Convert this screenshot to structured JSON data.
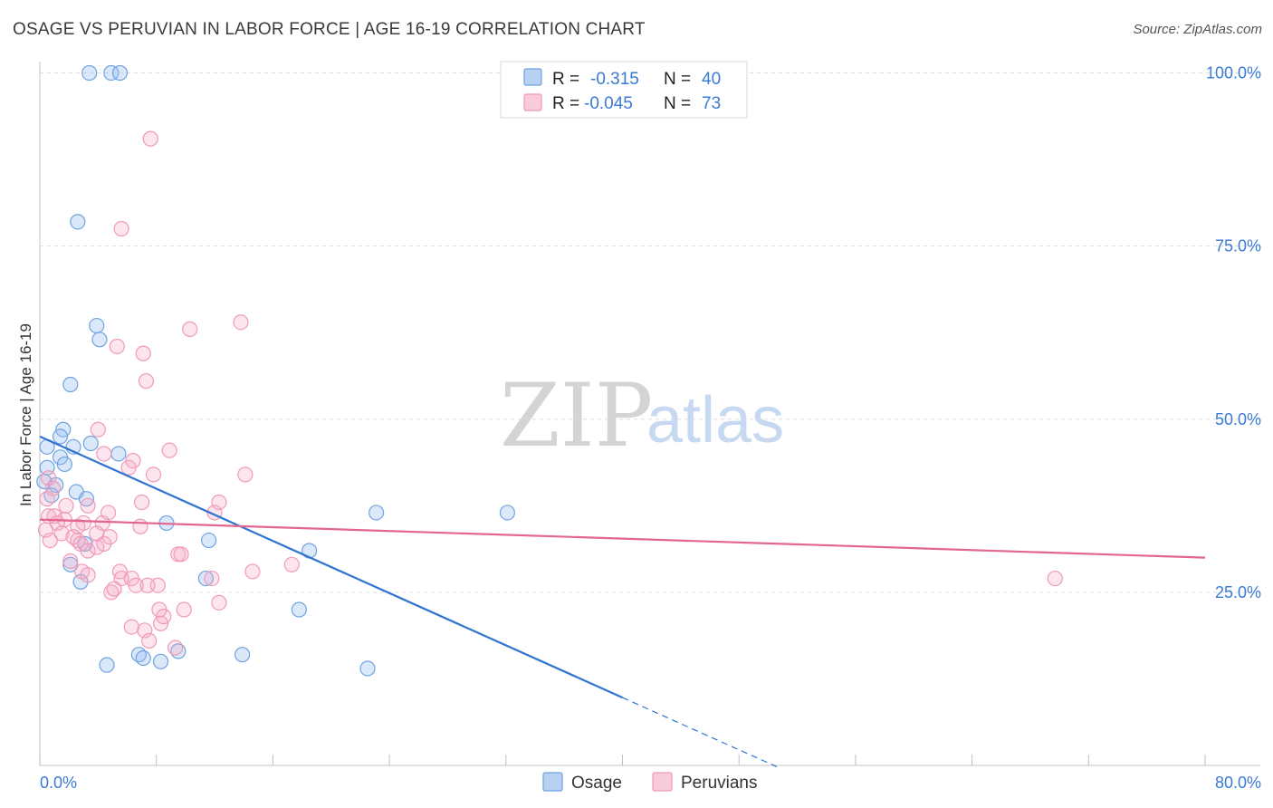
{
  "title": "OSAGE VS PERUVIAN IN LABOR FORCE | AGE 16-19 CORRELATION CHART",
  "source": "Source: ZipAtlas.com",
  "watermark": {
    "zip": "ZIP",
    "atlas": "atlas"
  },
  "colors": {
    "osage": "#6fa3e0",
    "osage_line": "#2f74d0",
    "peruvians": "#f09ab8",
    "peruvians_line": "#e36591",
    "axis_text": "#3a7bd5"
  },
  "legend": {
    "rows": [
      {
        "r_label": "R =",
        "r_value": "-0.315",
        "n_label": "N =",
        "n_value": "40"
      },
      {
        "r_label": "R =",
        "r_value": "-0.045",
        "n_label": "N =",
        "n_value": "73"
      }
    ]
  },
  "chart_data": {
    "type": "scatter",
    "title": "OSAGE VS PERUVIAN IN LABOR FORCE | AGE 16-19 CORRELATION CHART",
    "xlabel": "",
    "ylabel": "In Labor Force | Age 16-19",
    "xlim": [
      0,
      80
    ],
    "ylim": [
      0,
      104
    ],
    "x_tick_labels": [
      {
        "value": 0,
        "label": "0.0%"
      },
      {
        "value": 80,
        "label": "80.0%"
      }
    ],
    "y_tick_labels": [
      {
        "value": 25,
        "label": "25.0%"
      },
      {
        "value": 50,
        "label": "50.0%"
      },
      {
        "value": 75,
        "label": "75.0%"
      },
      {
        "value": 100,
        "label": "100.0%"
      }
    ],
    "series": [
      {
        "name": "Osage",
        "r": -0.315,
        "n": 40,
        "trend": {
          "x0": 0,
          "y0": 47.5,
          "x_solid_end": 40,
          "x_dash_end": 50.6
        },
        "points": [
          [
            3.4,
            100
          ],
          [
            4.9,
            100
          ],
          [
            5.5,
            100
          ],
          [
            2.6,
            78.5
          ],
          [
            3.9,
            63.5
          ],
          [
            4.1,
            61.5
          ],
          [
            2.1,
            55
          ],
          [
            1.6,
            48.5
          ],
          [
            1.4,
            47.5
          ],
          [
            0.5,
            46
          ],
          [
            2.3,
            46
          ],
          [
            3.5,
            46.5
          ],
          [
            1.4,
            44.5
          ],
          [
            1.7,
            43.5
          ],
          [
            5.4,
            45
          ],
          [
            0.5,
            43
          ],
          [
            0.3,
            41
          ],
          [
            1.1,
            40.5
          ],
          [
            0.8,
            39
          ],
          [
            2.5,
            39.5
          ],
          [
            3.2,
            38.5
          ],
          [
            23.1,
            36.5
          ],
          [
            32.1,
            36.5
          ],
          [
            8.7,
            35
          ],
          [
            11.6,
            32.5
          ],
          [
            3.1,
            32
          ],
          [
            2.1,
            29
          ],
          [
            18.5,
            31
          ],
          [
            2.8,
            26.5
          ],
          [
            11.4,
            27
          ],
          [
            17.8,
            22.5
          ],
          [
            6.8,
            16
          ],
          [
            7.1,
            15.5
          ],
          [
            8.3,
            15
          ],
          [
            9.5,
            16.5
          ],
          [
            13.9,
            16
          ],
          [
            4.6,
            14.5
          ],
          [
            22.5,
            14
          ]
        ]
      },
      {
        "name": "Peruvians",
        "r": -0.045,
        "n": 73,
        "trend": {
          "x0": 0,
          "y0": 35.5,
          "x_end": 80,
          "y_end": 30
        },
        "points": [
          [
            7.6,
            90.5
          ],
          [
            5.6,
            77.5
          ],
          [
            13.8,
            64
          ],
          [
            10.3,
            63
          ],
          [
            5.3,
            60.5
          ],
          [
            7.1,
            59.5
          ],
          [
            7.3,
            55.5
          ],
          [
            4,
            48.5
          ],
          [
            8.9,
            45.5
          ],
          [
            4.4,
            45
          ],
          [
            6.4,
            44
          ],
          [
            6.1,
            43
          ],
          [
            7.8,
            42
          ],
          [
            14.1,
            42
          ],
          [
            0.6,
            41.5
          ],
          [
            0.9,
            40
          ],
          [
            0.5,
            38.5
          ],
          [
            1.8,
            37.5
          ],
          [
            3.3,
            37.5
          ],
          [
            7,
            38
          ],
          [
            12.3,
            38
          ],
          [
            4.7,
            36.5
          ],
          [
            12,
            36.5
          ],
          [
            0.6,
            36
          ],
          [
            1,
            36
          ],
          [
            1.7,
            35.5
          ],
          [
            1.2,
            35
          ],
          [
            3,
            35
          ],
          [
            2.6,
            34.5
          ],
          [
            4.3,
            35
          ],
          [
            0.4,
            34
          ],
          [
            1.5,
            33.5
          ],
          [
            2.3,
            33
          ],
          [
            3.9,
            33.5
          ],
          [
            6.9,
            34.5
          ],
          [
            0.7,
            32.5
          ],
          [
            2.6,
            32.5
          ],
          [
            4.4,
            32
          ],
          [
            4.8,
            33
          ],
          [
            2.8,
            32
          ],
          [
            3.3,
            31
          ],
          [
            3.9,
            31.5
          ],
          [
            9.5,
            30.5
          ],
          [
            9.7,
            30.5
          ],
          [
            17.3,
            29
          ],
          [
            2.1,
            29.5
          ],
          [
            2.9,
            28
          ],
          [
            5.5,
            28
          ],
          [
            14.6,
            28
          ],
          [
            3.3,
            27.5
          ],
          [
            5.6,
            27
          ],
          [
            6.3,
            27
          ],
          [
            11.8,
            27
          ],
          [
            6.6,
            26
          ],
          [
            8.1,
            26
          ],
          [
            4.9,
            25
          ],
          [
            7.4,
            26
          ],
          [
            5.1,
            25.5
          ],
          [
            12.3,
            23.5
          ],
          [
            8.2,
            22.5
          ],
          [
            9.9,
            22.5
          ],
          [
            8.5,
            21.5
          ],
          [
            8.3,
            20.5
          ],
          [
            6.3,
            20
          ],
          [
            7.2,
            19.5
          ],
          [
            7.5,
            18
          ],
          [
            9.3,
            17
          ],
          [
            69.7,
            27
          ]
        ]
      }
    ]
  },
  "bottom_legend": [
    {
      "label": "Osage"
    },
    {
      "label": "Peruvians"
    }
  ]
}
